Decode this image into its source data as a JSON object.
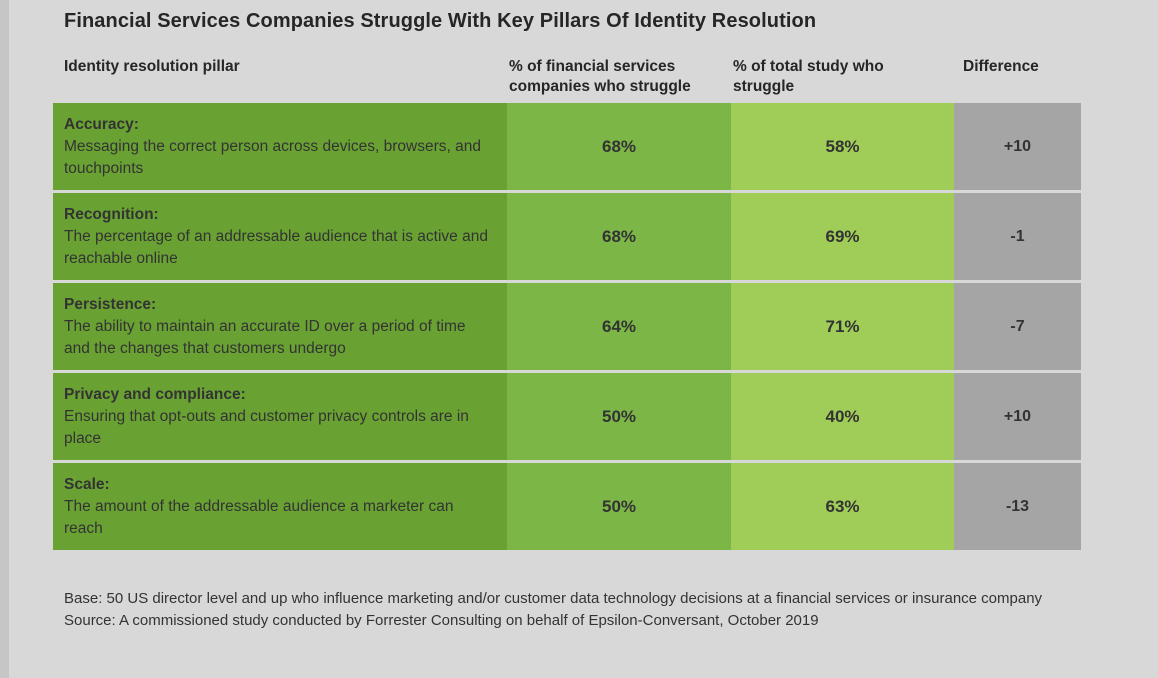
{
  "page": {
    "title": "Financial Services Companies Struggle With Key Pillars Of Identity Resolution"
  },
  "table": {
    "headers": {
      "pillar": "Identity resolution pillar",
      "financial": "% of financial services companies who struggle",
      "total": "% of total study who struggle",
      "difference": "Difference"
    },
    "rows": [
      {
        "name": "Accuracy:",
        "desc": "Messaging the correct person across devices, browsers, and touchpoints",
        "financial": "68%",
        "total": "58%",
        "difference": "+10"
      },
      {
        "name": "Recognition:",
        "desc": "The percentage of an addressable audience that is active and reachable online",
        "financial": "68%",
        "total": "69%",
        "difference": "-1"
      },
      {
        "name": "Persistence:",
        "desc": "The ability to maintain an accurate ID over a period of time and the changes that customers undergo",
        "financial": "64%",
        "total": "71%",
        "difference": "-7"
      },
      {
        "name": "Privacy and compliance:",
        "desc": "Ensuring that opt-outs and customer privacy controls are in place",
        "financial": "50%",
        "total": "40%",
        "difference": "+10"
      },
      {
        "name": "Scale:",
        "desc": "The amount of the addressable audience a marketer can reach",
        "financial": "50%",
        "total": "63%",
        "difference": "-13"
      }
    ]
  },
  "footer": {
    "base": "Base: 50 US director level and up who influence marketing and/or customer data technology decisions at a financial services or insurance company",
    "source": "Source: A commissioned study conducted by Forrester Consulting on behalf of Epsilon-Conversant, October 2019"
  },
  "colors": {
    "background": "#d8d8d8",
    "col_pillar": "#69a233",
    "col_fs": "#7cb647",
    "col_total": "#a0cd58",
    "col_diff": "#a5a5a5",
    "text_dark": "#262626",
    "text_body": "#333333"
  },
  "chart_data": {
    "type": "table",
    "title": "Financial Services Companies Struggle With Key Pillars Of Identity Resolution",
    "categories": [
      "Accuracy",
      "Recognition",
      "Persistence",
      "Privacy and compliance",
      "Scale"
    ],
    "series": [
      {
        "name": "% of financial services companies who struggle",
        "values": [
          68,
          68,
          64,
          50,
          50
        ]
      },
      {
        "name": "% of total study who struggle",
        "values": [
          58,
          69,
          71,
          40,
          63
        ]
      },
      {
        "name": "Difference",
        "values": [
          10,
          -1,
          -7,
          10,
          -13
        ]
      }
    ],
    "notes": [
      "Base: 50 US director level and up who influence marketing and/or customer data technology decisions at a financial services or insurance company",
      "Source: A commissioned study conducted by Forrester Consulting on behalf of Epsilon-Conversant, October 2019"
    ]
  }
}
